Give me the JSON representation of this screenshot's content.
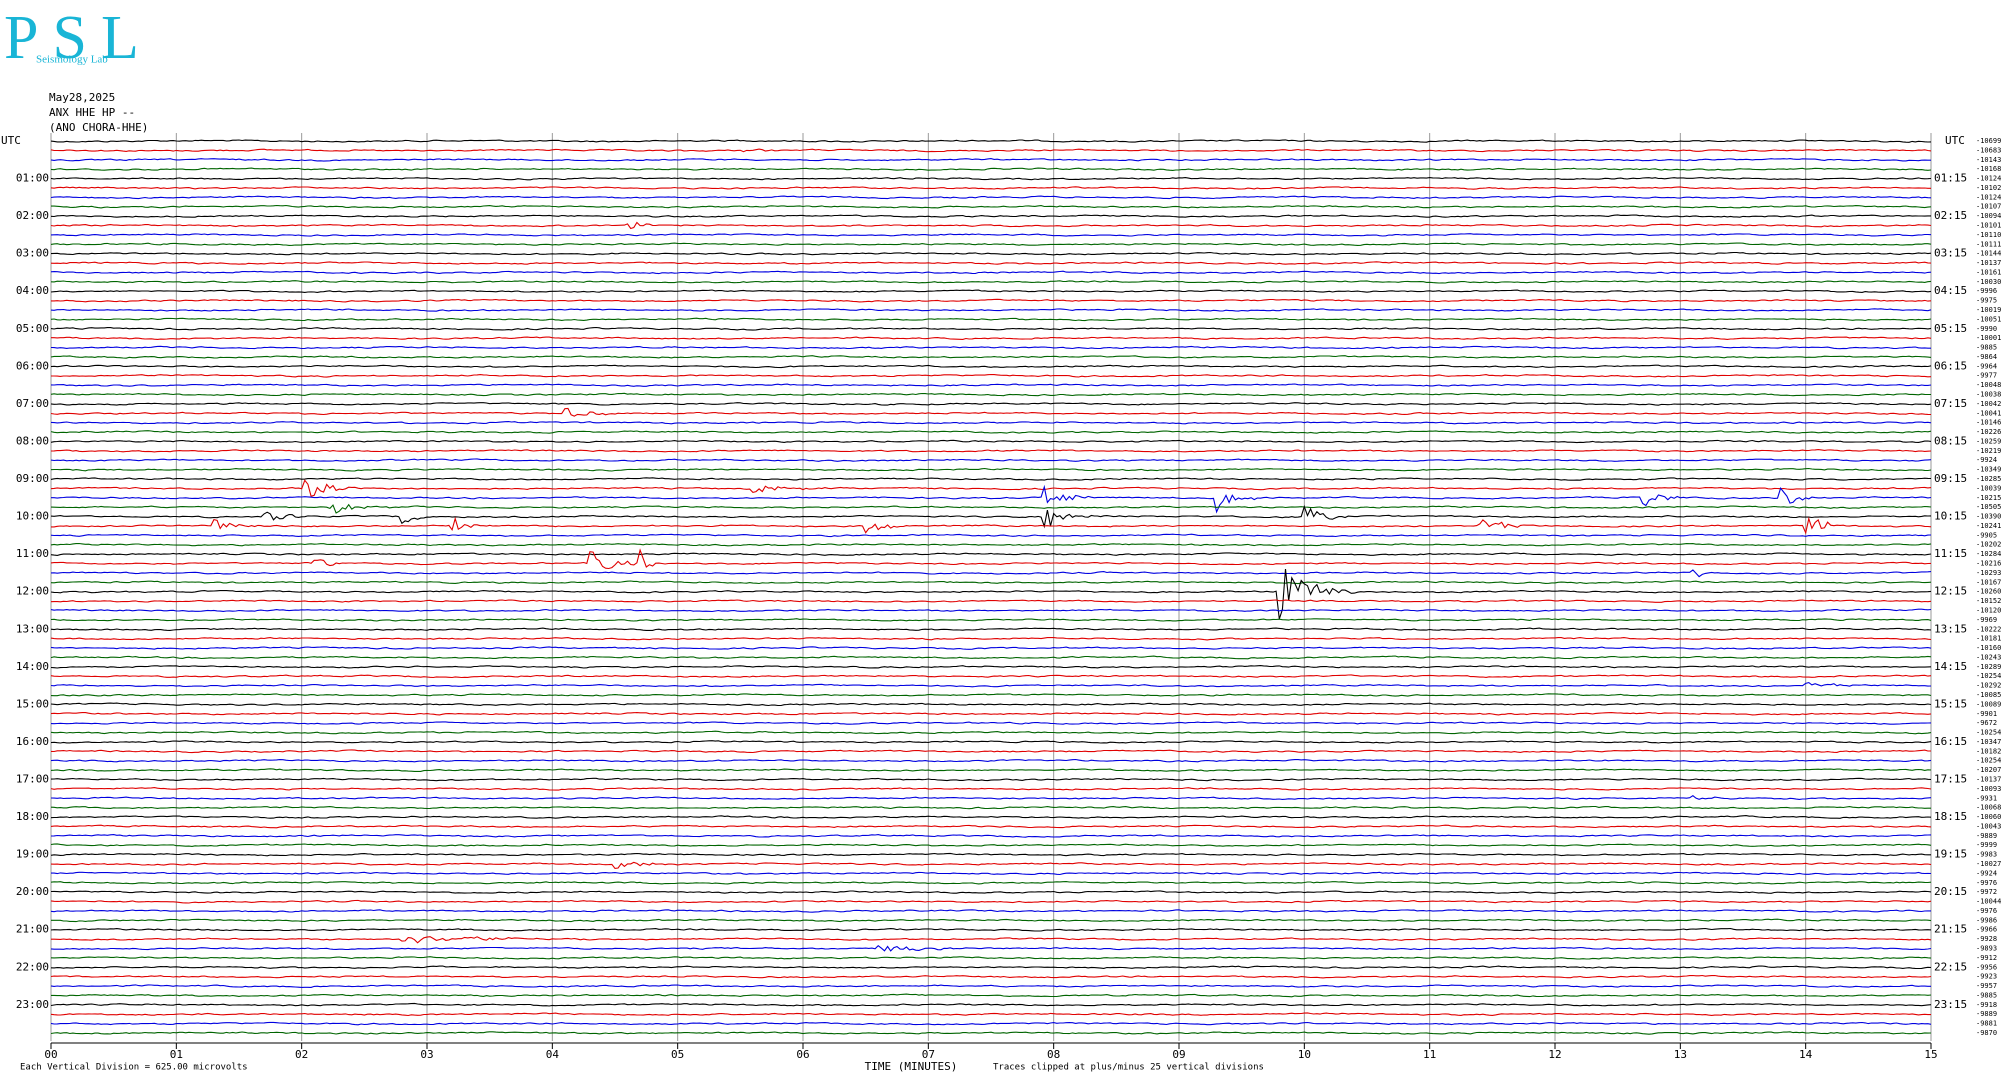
{
  "chart_data": {
    "type": "helicorder",
    "logo": {
      "letters": "PSL",
      "subtitle": "Seismology Lab"
    },
    "date": "May28,2025",
    "channel": "ANX HHE HP --",
    "station": "(ANO CHORA-HHE)",
    "xlim": [
      0,
      15
    ],
    "xticks": [
      {
        "value": 0,
        "label": "00"
      },
      {
        "value": 1,
        "label": "01"
      },
      {
        "value": 2,
        "label": "02"
      },
      {
        "value": 3,
        "label": "03"
      },
      {
        "value": 4,
        "label": "04"
      },
      {
        "value": 5,
        "label": "05"
      },
      {
        "value": 6,
        "label": "06"
      },
      {
        "value": 7,
        "label": "07"
      },
      {
        "value": 8,
        "label": "08"
      },
      {
        "value": 9,
        "label": "09"
      },
      {
        "value": 10,
        "label": "10"
      },
      {
        "value": 11,
        "label": "11"
      },
      {
        "value": 12,
        "label": "12"
      },
      {
        "value": 13,
        "label": "13"
      },
      {
        "value": 14,
        "label": "14"
      },
      {
        "value": 15,
        "label": "15"
      }
    ],
    "xlabel": "TIME (MINUTES)",
    "scale_note": "Each Vertical Division =  625.00 microvolts",
    "clip_note": "Traces clipped at plus/minus 25 vertical divisions",
    "left_labels": [
      "UTC",
      "01:00",
      "02:00",
      "03:00",
      "04:00",
      "05:00",
      "06:00",
      "07:00",
      "08:00",
      "09:00",
      "10:00",
      "11:00",
      "12:00",
      "13:00",
      "14:00",
      "15:00",
      "16:00",
      "17:00",
      "18:00",
      "19:00",
      "20:00",
      "21:00",
      "22:00",
      "23:00"
    ],
    "right_labels": [
      "UTC",
      "01:15",
      "02:15",
      "03:15",
      "04:15",
      "05:15",
      "06:15",
      "07:15",
      "08:15",
      "09:15",
      "10:15",
      "11:15",
      "12:15",
      "13:15",
      "14:15",
      "15:15",
      "16:15",
      "17:15",
      "18:15",
      "19:15",
      "20:15",
      "21:15",
      "22:15",
      "23:15"
    ],
    "trace_colors": [
      "#000000",
      "#e00000",
      "#0000e0",
      "#006400"
    ],
    "trace_offsets": [
      -10699,
      -10683,
      -10143,
      -10168,
      -10124,
      -10102,
      -10124,
      -10107,
      -10094,
      -10101,
      -10110,
      -10111,
      -10144,
      -10137,
      -10161,
      -10030,
      -9996,
      -9975,
      -10019,
      -10051,
      -9990,
      -10001,
      -9885,
      -9864,
      -9964,
      -9977,
      -10048,
      -10038,
      -10042,
      -10041,
      -10146,
      -10226,
      -10259,
      -10219,
      -9924,
      -10349,
      -10285,
      -10039,
      -10215,
      -10505,
      -10390,
      -10241,
      -9905,
      -10202,
      -10284,
      -10216,
      -10293,
      -10167,
      -10260,
      -10152,
      -10120,
      -9969,
      -10222,
      -10181,
      -10160,
      -10243,
      -10289,
      -10254,
      -10292,
      -10085,
      -10089,
      -9901,
      -9672,
      -10254,
      -10347,
      -10182,
      -10254,
      -10207,
      -10137,
      -10093,
      -9931,
      -10068,
      -10060,
      -10043,
      -9889,
      -9999,
      -9983,
      -10027,
      -9924,
      -9976,
      -9972,
      -10044,
      -9976,
      -9986,
      -9966,
      -9928,
      -9893,
      -9912,
      -9956,
      -9923,
      -9957,
      -9885,
      -9918,
      -9889,
      -9881,
      -9870
    ]
  }
}
